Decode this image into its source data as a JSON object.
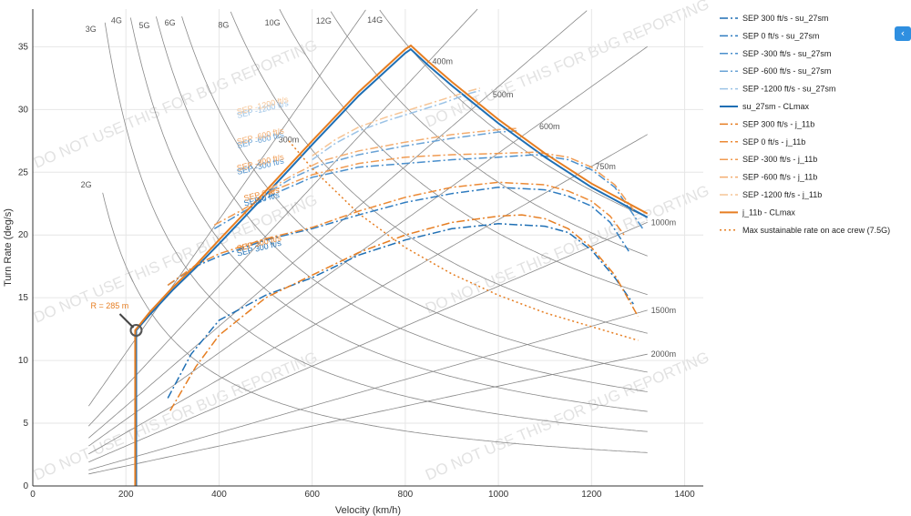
{
  "chart_data": {
    "type": "line",
    "xlabel": "Velocity (km/h)",
    "ylabel": "Turn Rate (deg/s)",
    "xlim": [
      0,
      1440
    ],
    "ylim": [
      0,
      38
    ],
    "xticks": [
      0,
      200,
      400,
      600,
      800,
      1000,
      1200,
      1400
    ],
    "yticks": [
      0,
      5,
      10,
      15,
      20,
      25,
      30,
      35
    ],
    "grid": true,
    "legend_position": "right",
    "watermark": "DO NOT USE THIS FOR BUG REPORTING",
    "annotation": {
      "text": "R = 285 m",
      "point": [
        222,
        12.4
      ]
    },
    "reference_g_lines": [
      {
        "label": "2G",
        "value": 2
      },
      {
        "label": "3G",
        "value": 3
      },
      {
        "label": "4G",
        "value": 4
      },
      {
        "label": "5G",
        "value": 5
      },
      {
        "label": "6G",
        "value": 6
      },
      {
        "label": "8G",
        "value": 8
      },
      {
        "label": "10G",
        "value": 10
      },
      {
        "label": "12G",
        "value": 12
      },
      {
        "label": "14G",
        "value": 14
      }
    ],
    "reference_radius_lines": [
      {
        "label": "300m",
        "value": 300
      },
      {
        "label": "400m",
        "value": 400
      },
      {
        "label": "500m",
        "value": 500
      },
      {
        "label": "600m",
        "value": 600
      },
      {
        "label": "750m",
        "value": 750
      },
      {
        "label": "1000m",
        "value": 1000
      },
      {
        "label": "1500m",
        "value": 1500
      },
      {
        "label": "2000m",
        "value": 2000
      }
    ],
    "series": [
      {
        "name": "SEP 300 ft/s - su_27sm",
        "color": "#1f6fb4",
        "dash": "dashdot",
        "points": [
          [
            290,
            7
          ],
          [
            340,
            10.5
          ],
          [
            400,
            13.2
          ],
          [
            500,
            15.2
          ],
          [
            600,
            16.6
          ],
          [
            700,
            18.4
          ],
          [
            800,
            19.6
          ],
          [
            900,
            20.5
          ],
          [
            1000,
            20.9
          ],
          [
            1100,
            20.7
          ],
          [
            1150,
            20.2
          ],
          [
            1200,
            18.8
          ],
          [
            1250,
            16.6
          ],
          [
            1290,
            14.5
          ]
        ],
        "label": "SEP 300 ft/s",
        "label_at": [
          440,
          18.3
        ]
      },
      {
        "name": "SEP 0 ft/s - su_27sm",
        "color": "#2f7cc0",
        "dash": "dashdot",
        "points": [
          [
            290,
            16
          ],
          [
            350,
            17.5
          ],
          [
            400,
            18.3
          ],
          [
            500,
            19.6
          ],
          [
            600,
            20.5
          ],
          [
            700,
            21.6
          ],
          [
            800,
            22.6
          ],
          [
            900,
            23.3
          ],
          [
            1000,
            23.8
          ],
          [
            1100,
            23.6
          ],
          [
            1150,
            23.1
          ],
          [
            1200,
            22.3
          ],
          [
            1240,
            21
          ],
          [
            1280,
            18.7
          ]
        ],
        "label": "SEP 0 ft/s",
        "label_at": [
          455,
          22.3
        ]
      },
      {
        "name": "SEP -300 ft/s - su_27sm",
        "color": "#4a8fcc",
        "dash": "dashdot",
        "points": [
          [
            390,
            20.5
          ],
          [
            450,
            21.8
          ],
          [
            520,
            23.3
          ],
          [
            600,
            24.6
          ],
          [
            700,
            25.4
          ],
          [
            800,
            25.7
          ],
          [
            900,
            26
          ],
          [
            1000,
            26.2
          ],
          [
            1080,
            26.4
          ],
          [
            1150,
            26
          ],
          [
            1200,
            25.2
          ],
          [
            1250,
            23.8
          ],
          [
            1290,
            21.6
          ],
          [
            1310,
            20.5
          ]
        ],
        "label": "SEP -300 ft/s",
        "label_at": [
          440,
          24.8
        ]
      },
      {
        "name": "SEP -600 ft/s - su_27sm",
        "color": "#6aa3d6",
        "dash": "dashdot",
        "points": [
          [
            510,
            23.5
          ],
          [
            560,
            24.6
          ],
          [
            620,
            25.6
          ],
          [
            700,
            26.4
          ],
          [
            800,
            27.1
          ],
          [
            900,
            27.7
          ],
          [
            1000,
            28.2
          ],
          [
            1040,
            28.3
          ]
        ],
        "label": "SEP -600 ft/s",
        "label_at": [
          440,
          26.9
        ]
      },
      {
        "name": "SEP -1200 ft/s - su_27sm",
        "color": "#9cc3e6",
        "dash": "dashdot",
        "points": [
          [
            600,
            26
          ],
          [
            650,
            27.3
          ],
          [
            700,
            28.3
          ],
          [
            760,
            29.1
          ],
          [
            820,
            29.8
          ],
          [
            880,
            30.5
          ],
          [
            940,
            31.3
          ],
          [
            960,
            31.5
          ]
        ],
        "label": "SEP -1200 ft/s",
        "label_at": [
          440,
          29.3
        ]
      },
      {
        "name": "su_27sm - CLmax",
        "color": "#1f6fb4",
        "dash": "solid",
        "points": [
          [
            222,
            0
          ],
          [
            222,
            12.4
          ],
          [
            250,
            13.6
          ],
          [
            300,
            15.6
          ],
          [
            350,
            17.4
          ],
          [
            400,
            19.3
          ],
          [
            500,
            23.2
          ],
          [
            600,
            27.2
          ],
          [
            700,
            31.1
          ],
          [
            800,
            34.5
          ],
          [
            812,
            34.8
          ],
          [
            850,
            33.5
          ],
          [
            900,
            31.9
          ],
          [
            1000,
            28.9
          ],
          [
            1100,
            26.2
          ],
          [
            1200,
            23.8
          ],
          [
            1300,
            21.8
          ],
          [
            1320,
            21.4
          ]
        ]
      },
      {
        "name": "SEP 300 ft/s - j_11b",
        "color": "#e67e22",
        "dash": "dashdot",
        "points": [
          [
            295,
            6
          ],
          [
            350,
            9.5
          ],
          [
            400,
            12
          ],
          [
            500,
            15
          ],
          [
            600,
            16.8
          ],
          [
            700,
            18.6
          ],
          [
            800,
            20
          ],
          [
            900,
            21
          ],
          [
            1000,
            21.5
          ],
          [
            1050,
            21.6
          ],
          [
            1100,
            21.3
          ],
          [
            1150,
            20.5
          ],
          [
            1200,
            19
          ],
          [
            1250,
            16.8
          ],
          [
            1300,
            13.5
          ]
        ],
        "label": "SEP 300 ft/s",
        "label_at": [
          440,
          18.7
        ]
      },
      {
        "name": "SEP 0 ft/s - j_11b",
        "color": "#ec8a35",
        "dash": "dashdot",
        "points": [
          [
            290,
            16
          ],
          [
            350,
            17.6
          ],
          [
            400,
            18.5
          ],
          [
            500,
            19.7
          ],
          [
            600,
            20.6
          ],
          [
            700,
            21.9
          ],
          [
            800,
            23
          ],
          [
            900,
            23.8
          ],
          [
            1000,
            24.2
          ],
          [
            1100,
            24
          ],
          [
            1150,
            23.5
          ],
          [
            1200,
            22.7
          ],
          [
            1240,
            21.5
          ],
          [
            1270,
            20
          ]
        ],
        "label": "SEP 0 ft/s",
        "label_at": [
          455,
          22.7
        ]
      },
      {
        "name": "SEP -300 ft/s - j_11b",
        "color": "#f09b52",
        "dash": "dashdot",
        "points": [
          [
            390,
            20.8
          ],
          [
            450,
            22
          ],
          [
            520,
            23.6
          ],
          [
            600,
            24.8
          ],
          [
            700,
            25.7
          ],
          [
            800,
            26.2
          ],
          [
            900,
            26.4
          ],
          [
            1000,
            26.5
          ],
          [
            1080,
            26.6
          ],
          [
            1150,
            26.2
          ],
          [
            1200,
            25.4
          ],
          [
            1250,
            24
          ],
          [
            1290,
            22
          ]
        ],
        "label": "SEP -300 ft/s",
        "label_at": [
          440,
          25.1
        ]
      },
      {
        "name": "SEP -600 ft/s - j_11b",
        "color": "#f3ad70",
        "dash": "dashdot",
        "points": [
          [
            510,
            23.7
          ],
          [
            560,
            24.8
          ],
          [
            620,
            25.9
          ],
          [
            700,
            26.7
          ],
          [
            800,
            27.4
          ],
          [
            900,
            28
          ],
          [
            1000,
            28.4
          ],
          [
            1040,
            28.5
          ]
        ],
        "label": "SEP -600 ft/s",
        "label_at": [
          440,
          27.2
        ]
      },
      {
        "name": "SEP -1200 ft/s - j_11b",
        "color": "#f6c596",
        "dash": "dashdot",
        "points": [
          [
            600,
            26.3
          ],
          [
            650,
            27.6
          ],
          [
            700,
            28.6
          ],
          [
            760,
            29.4
          ],
          [
            820,
            30.1
          ],
          [
            880,
            30.8
          ],
          [
            940,
            31.5
          ],
          [
            960,
            31.7
          ]
        ],
        "label": "SEP -1200 ft/s",
        "label_at": [
          440,
          29.6
        ]
      },
      {
        "name": "j_11b - CLmax",
        "color": "#e67e22",
        "dash": "solid",
        "points": [
          [
            220,
            0
          ],
          [
            220,
            12.4
          ],
          [
            250,
            13.8
          ],
          [
            300,
            15.8
          ],
          [
            350,
            17.6
          ],
          [
            400,
            19.6
          ],
          [
            500,
            23.5
          ],
          [
            600,
            27.5
          ],
          [
            700,
            31.4
          ],
          [
            800,
            34.8
          ],
          [
            812,
            35.1
          ],
          [
            850,
            33.8
          ],
          [
            900,
            32.2
          ],
          [
            1000,
            29.2
          ],
          [
            1100,
            26.5
          ],
          [
            1200,
            24.1
          ],
          [
            1300,
            22.1
          ],
          [
            1320,
            21.7
          ]
        ]
      },
      {
        "name": "Max sustainable rate on ace crew (7.5G)",
        "color": "#e67e22",
        "dash": "dot",
        "points": [
          [
            550,
            27.5
          ],
          [
            600,
            25.3
          ],
          [
            700,
            21.7
          ],
          [
            800,
            19
          ],
          [
            900,
            16.9
          ],
          [
            1000,
            15.2
          ],
          [
            1100,
            13.8
          ],
          [
            1200,
            12.7
          ],
          [
            1300,
            11.6
          ]
        ]
      }
    ]
  },
  "ui": {
    "collapse_icon": "chevron-left-icon",
    "collapse_glyph": "‹"
  }
}
